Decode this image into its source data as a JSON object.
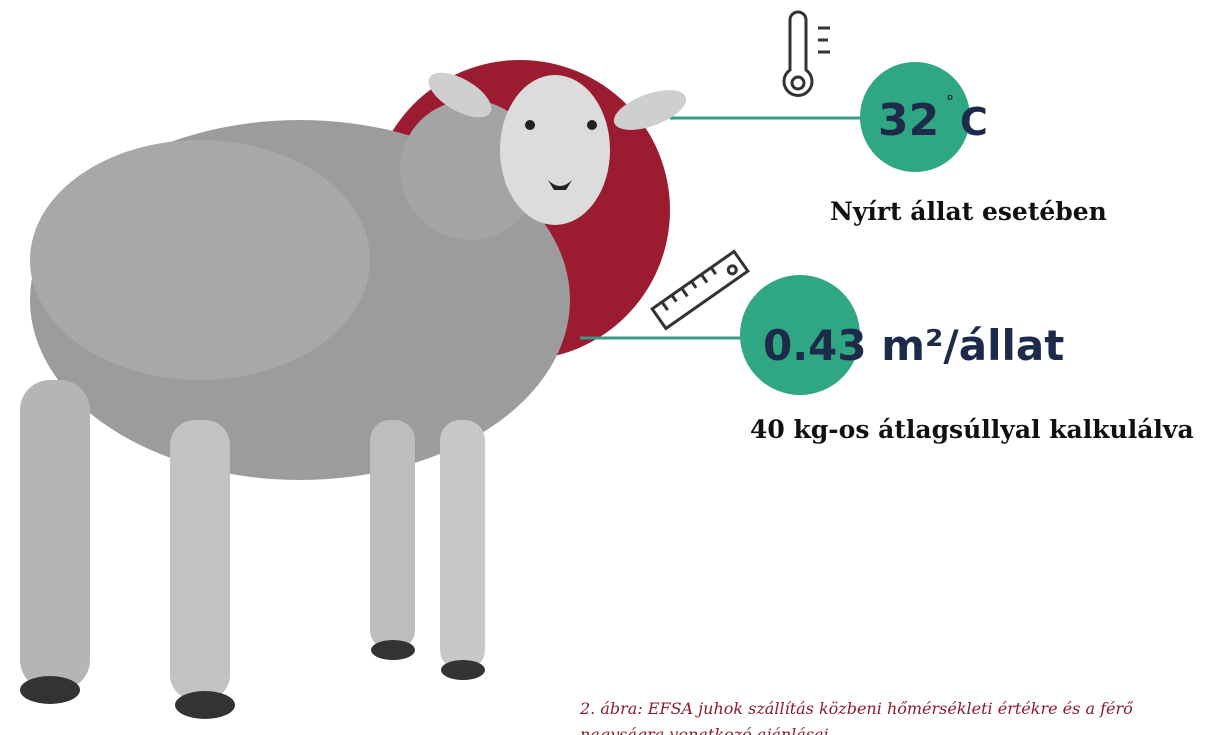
{
  "temperature": {
    "value": "32",
    "degree": "°",
    "unit": "C",
    "note": "Nyírt állat esetében"
  },
  "space": {
    "value": "0.43 m²/állat",
    "note": "40 kg-os átlagsúllyal kalkulálva"
  },
  "caption": {
    "lines": [
      "2. ábra: EFSA juhok szállítás közbeni hőmérsékleti értékre és a férő",
      "nagyságra vonatkozó ajánlásai"
    ]
  }
}
